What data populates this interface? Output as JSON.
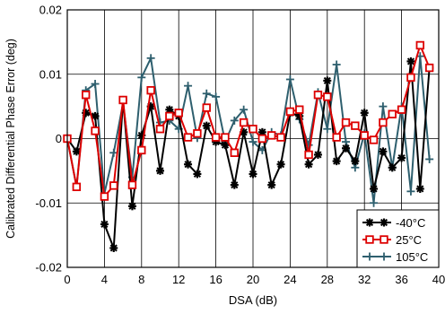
{
  "chart_data": {
    "type": "line",
    "title": "",
    "xlabel": "DSA (dB)",
    "ylabel": "Calibrated Differential Phase Error (deg)",
    "xlim": [
      0,
      40
    ],
    "ylim": [
      -0.02,
      0.02
    ],
    "xticks": [
      0,
      4,
      8,
      12,
      16,
      20,
      24,
      28,
      32,
      36,
      40
    ],
    "yticks": [
      -0.02,
      -0.01,
      0,
      0.01,
      0.02
    ],
    "xtick_labels": [
      "0",
      "4",
      "8",
      "12",
      "16",
      "20",
      "24",
      "28",
      "32",
      "36",
      "40"
    ],
    "ytick_labels": [
      "-0.02",
      "-0.01",
      "0",
      "0.01",
      "0.02"
    ],
    "grid": true,
    "legend_position": "bottom-right",
    "x": [
      0,
      1,
      2,
      3,
      4,
      5,
      6,
      7,
      8,
      9,
      10,
      11,
      12,
      13,
      14,
      15,
      16,
      17,
      18,
      19,
      20,
      21,
      22,
      23,
      24,
      25,
      26,
      27,
      28,
      29,
      30,
      31,
      32,
      33,
      34,
      35,
      36,
      37,
      38,
      39
    ],
    "series": [
      {
        "name": "-40°C",
        "color": "#000000",
        "marker": "star",
        "values": [
          0.0,
          -0.002,
          0.004,
          0.0035,
          -0.0133,
          -0.017,
          0.006,
          -0.0105,
          0.0005,
          0.005,
          -0.005,
          0.0045,
          0.0035,
          -0.004,
          -0.0055,
          0.002,
          -0.0005,
          -0.001,
          -0.0072,
          0.001,
          -0.0055,
          0.001,
          -0.0072,
          -0.004,
          0.004,
          0.0035,
          -0.004,
          -0.0025,
          0.009,
          -0.0035,
          -0.0015,
          -0.0035,
          0.004,
          -0.0078,
          -0.002,
          -0.0045,
          -0.003,
          0.012,
          -0.0078,
          0.011
        ]
      },
      {
        "name": "25°C",
        "color": "#dd0000",
        "marker": "square",
        "values": [
          0.0,
          -0.0075,
          0.0068,
          0.0012,
          -0.009,
          -0.0073,
          0.006,
          -0.0072,
          -0.0018,
          0.0075,
          0.0015,
          0.0035,
          0.004,
          0.0002,
          0.0008,
          0.0048,
          0.0002,
          0.0002,
          -0.0022,
          0.0025,
          0.0015,
          0.0,
          0.0005,
          0.0002,
          0.0042,
          0.0045,
          -0.0025,
          0.0068,
          0.0065,
          0.0002,
          0.0025,
          0.002,
          0.0005,
          -0.0002,
          0.0025,
          0.0038,
          0.0045,
          0.0095,
          0.0145,
          0.011
        ]
      },
      {
        "name": "105°C",
        "color": "#2e5f6e",
        "marker": "plus",
        "values": [
          0.0,
          -0.0075,
          0.0075,
          0.0085,
          -0.0085,
          -0.0022,
          0.0055,
          -0.006,
          0.0095,
          0.0125,
          0.0025,
          0.0028,
          0.0015,
          0.0082,
          0.0001,
          0.007,
          0.0065,
          -0.0005,
          0.0028,
          0.0045,
          -0.0005,
          -0.0018,
          0.001,
          0.0005,
          0.0092,
          0.003,
          -0.001,
          0.0072,
          0.0015,
          0.0115,
          -0.0005,
          -0.0045,
          0.0008,
          -0.01,
          0.005,
          -0.0045,
          0.005,
          -0.0082,
          0.0128,
          -0.0032
        ]
      }
    ]
  }
}
